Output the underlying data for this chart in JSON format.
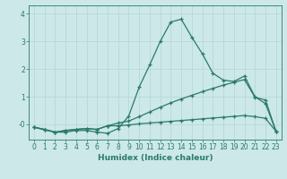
{
  "xlabel": "Humidex (Indice chaleur)",
  "background_color": "#cce8e8",
  "grid_color": "#b8d8d8",
  "line_color": "#2a7a6a",
  "xlim_min": -0.5,
  "xlim_max": 23.5,
  "ylim_min": -0.55,
  "ylim_max": 4.3,
  "x_ticks": [
    0,
    1,
    2,
    3,
    4,
    5,
    6,
    7,
    8,
    9,
    10,
    11,
    12,
    13,
    14,
    15,
    16,
    17,
    18,
    19,
    20,
    21,
    22,
    23
  ],
  "y_ticks": [
    0,
    1,
    2,
    3,
    4
  ],
  "y_tick_labels": [
    "-0",
    "1",
    "2",
    "3",
    "4"
  ],
  "line1_x": [
    0,
    1,
    2,
    3,
    4,
    5,
    6,
    7,
    8,
    9,
    10,
    11,
    12,
    13,
    14,
    15,
    16,
    17,
    18,
    19,
    20,
    21,
    22,
    23
  ],
  "line1_y": [
    -0.1,
    -0.2,
    -0.28,
    -0.28,
    -0.22,
    -0.22,
    -0.28,
    -0.32,
    -0.15,
    0.3,
    1.35,
    2.15,
    3.0,
    3.7,
    3.8,
    3.15,
    2.55,
    1.85,
    1.6,
    1.55,
    1.75,
    1.0,
    0.75,
    -0.25
  ],
  "line2_x": [
    0,
    1,
    2,
    3,
    4,
    5,
    6,
    7,
    8,
    9,
    10,
    11,
    12,
    13,
    14,
    15,
    16,
    17,
    18,
    19,
    20,
    21,
    22,
    23
  ],
  "line2_y": [
    -0.1,
    -0.18,
    -0.28,
    -0.22,
    -0.18,
    -0.15,
    -0.18,
    -0.05,
    0.05,
    0.12,
    0.28,
    0.45,
    0.62,
    0.78,
    0.92,
    1.05,
    1.18,
    1.3,
    1.42,
    1.52,
    1.62,
    0.98,
    0.88,
    -0.25
  ],
  "line3_x": [
    0,
    1,
    2,
    3,
    4,
    5,
    6,
    7,
    8,
    9,
    10,
    11,
    12,
    13,
    14,
    15,
    16,
    17,
    18,
    19,
    20,
    21,
    22,
    23
  ],
  "line3_y": [
    -0.1,
    -0.18,
    -0.28,
    -0.22,
    -0.18,
    -0.15,
    -0.18,
    -0.05,
    -0.05,
    -0.02,
    0.02,
    0.05,
    0.08,
    0.11,
    0.14,
    0.17,
    0.2,
    0.23,
    0.26,
    0.29,
    0.32,
    0.28,
    0.22,
    -0.25
  ],
  "tick_fontsize": 5.5,
  "xlabel_fontsize": 6.5
}
